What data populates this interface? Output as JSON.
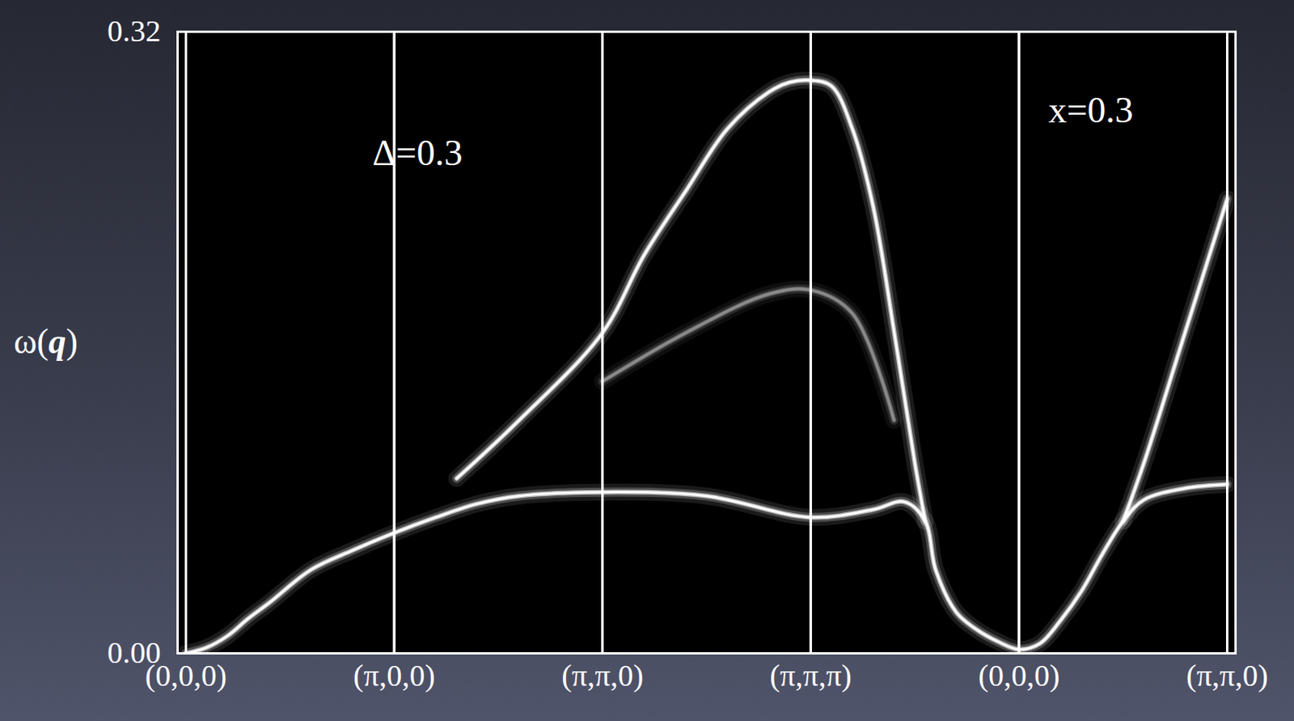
{
  "chart_data": {
    "type": "line",
    "y_label": "ω(q)",
    "annotations": [
      "Δ=0.3",
      "x=0.3"
    ],
    "xlim": [
      -0.04,
      5.04
    ],
    "xticks": [
      {
        "value": 0,
        "label": "(0,0,0)"
      },
      {
        "value": 1,
        "label": "(π,0,0)"
      },
      {
        "value": 2,
        "label": "(π,π,0)"
      },
      {
        "value": 3,
        "label": "(π,π,π)"
      },
      {
        "value": 4,
        "label": "(0,0,0)"
      },
      {
        "value": 5,
        "label": "(π,π,0)"
      }
    ],
    "ylim": [
      0,
      0.32
    ],
    "yticks": [
      {
        "value": 0,
        "label": "0.00"
      },
      {
        "value": 0.32,
        "label": "0.32"
      }
    ],
    "grid": false,
    "series": [
      {
        "color": "#ffffff",
        "x": [
          0,
          0.1,
          0.2,
          0.3,
          0.4,
          0.6,
          0.8,
          1,
          1.2,
          1.4,
          1.6,
          2,
          2.5,
          3,
          3.3,
          3.45,
          3.55,
          3.6,
          3.7,
          3.8,
          3.9,
          4,
          4.1,
          4.2,
          4.3,
          4.4,
          4.5,
          4.6,
          4.8,
          5
        ],
        "values": [
          0,
          0.003,
          0.009,
          0.018,
          0.026,
          0.043,
          0.053,
          0.062,
          0.07,
          0.077,
          0.081,
          0.083,
          0.081,
          0.07,
          0.074,
          0.078,
          0.068,
          0.043,
          0.021,
          0.012,
          0.006,
          0.002,
          0.005,
          0.017,
          0.032,
          0.051,
          0.068,
          0.079,
          0.085,
          0.087
        ]
      },
      {
        "color": "#ffffff",
        "x": [
          1.3,
          1.6,
          2,
          2.2,
          2.4,
          2.6,
          2.8,
          2.9,
          3,
          3.1,
          3.2,
          3.3,
          3.4,
          3.5,
          3.55
        ],
        "values": [
          0.09,
          0.12,
          0.165,
          0.205,
          0.238,
          0.27,
          0.289,
          0.294,
          0.295,
          0.292,
          0.27,
          0.23,
          0.166,
          0.098,
          0.068
        ]
      },
      {
        "color": "#ffffff",
        "x": [
          4.5,
          4.6,
          4.8,
          5
        ],
        "values": [
          0.068,
          0.098,
          0.166,
          0.234
        ]
      },
      {
        "color": "#8c8c8c",
        "x": [
          2,
          2.4,
          2.8,
          3,
          3.2,
          3.4
        ],
        "values": [
          0.14,
          0.165,
          0.185,
          0.187,
          0.175,
          0.12
        ]
      }
    ]
  }
}
